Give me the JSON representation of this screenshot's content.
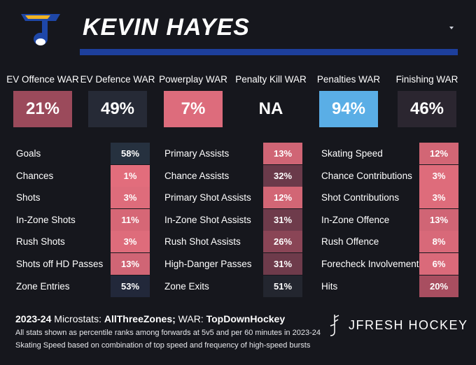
{
  "player_name": "KEVIN HAYES",
  "colors": {
    "background": "#16171d",
    "accent_blue": "#1d3f9c",
    "logo_blue": "#1e47a8",
    "logo_gold": "#f0b323"
  },
  "war": [
    {
      "label": "EV Offence WAR",
      "value": "21%",
      "color": "#9b4a5b"
    },
    {
      "label": "EV Defence WAR",
      "value": "49%",
      "color": "#262a36"
    },
    {
      "label": "Powerplay WAR",
      "value": "7%",
      "color": "#dd6c7c"
    },
    {
      "label": "Penalty Kill WAR",
      "value": "NA",
      "color": "#16171d"
    },
    {
      "label": "Penalties WAR",
      "value": "94%",
      "color": "#5aaee6"
    },
    {
      "label": "Finishing WAR",
      "value": "46%",
      "color": "#2b2630"
    }
  ],
  "stats": [
    [
      {
        "label": "Goals",
        "value": "58%",
        "color": "#26313f"
      },
      {
        "label": "Chances",
        "value": "1%",
        "color": "#e26d7c"
      },
      {
        "label": "Shots",
        "value": "3%",
        "color": "#de6c7b"
      },
      {
        "label": "In-Zone Shots",
        "value": "11%",
        "color": "#d66776"
      },
      {
        "label": "Rush Shots",
        "value": "3%",
        "color": "#de6c7b"
      },
      {
        "label": "Shots off HD Passes",
        "value": "13%",
        "color": "#d06575"
      },
      {
        "label": "Zone Entries",
        "value": "53%",
        "color": "#22283a"
      }
    ],
    [
      {
        "label": "Primary Assists",
        "value": "13%",
        "color": "#d06575"
      },
      {
        "label": "Chance Assists",
        "value": "32%",
        "color": "#6a3a4a"
      },
      {
        "label": "Primary Shot Assists",
        "value": "12%",
        "color": "#d26675"
      },
      {
        "label": "In-Zone Shot Assists",
        "value": "31%",
        "color": "#6e3b4b"
      },
      {
        "label": "Rush Shot Assists",
        "value": "26%",
        "color": "#8a4556"
      },
      {
        "label": "High-Danger Passes",
        "value": "31%",
        "color": "#6e3b4b"
      },
      {
        "label": "Zone Exits",
        "value": "51%",
        "color": "#23262f"
      }
    ],
    [
      {
        "label": "Skating Speed",
        "value": "12%",
        "color": "#d26675"
      },
      {
        "label": "Chance Contributions",
        "value": "3%",
        "color": "#de6c7b"
      },
      {
        "label": "Shot Contributions",
        "value": "3%",
        "color": "#de6c7b"
      },
      {
        "label": "In-Zone Offence",
        "value": "13%",
        "color": "#d06575"
      },
      {
        "label": "Rush Offence",
        "value": "8%",
        "color": "#d86979"
      },
      {
        "label": "Forecheck Involvement",
        "value": "6%",
        "color": "#da6a7a"
      },
      {
        "label": "Hits",
        "value": "20%",
        "color": "#a84e60"
      }
    ]
  ],
  "footer": {
    "season": "2023-24",
    "microstats_label": "Microstats:",
    "microstats_source": "AllThreeZones;",
    "war_label": "WAR:",
    "war_source": "TopDownHockey",
    "note1": "All stats shown as percentile ranks among forwards at 5v5 and per 60 minutes in 2023-24",
    "note2": "Skating Speed based on combination of top speed and frequency of high-speed bursts"
  },
  "brand": "JFRESH HOCKEY"
}
